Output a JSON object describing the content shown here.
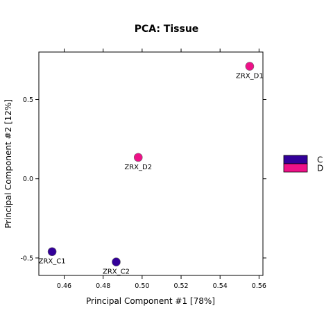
{
  "chart_data": {
    "type": "scatter",
    "title": "PCA: Tissue",
    "xlabel": "Principal Component #1 [78%]",
    "ylabel": "Principal Component #2 [12%]",
    "xlim": [
      0.447,
      0.562
    ],
    "ylim": [
      -0.61,
      0.8
    ],
    "x_ticks": [
      0.46,
      0.48,
      0.5,
      0.52,
      0.54,
      0.56
    ],
    "x_tick_labels": [
      "0.46",
      "0.48",
      "0.50",
      "0.52",
      "0.54",
      "0.56"
    ],
    "y_ticks": [
      -0.5,
      0.0,
      0.5
    ],
    "y_tick_labels": [
      "-0.5",
      "0.0",
      "0.5"
    ],
    "grid": false,
    "legend_position": "right",
    "series": [
      {
        "name": "C",
        "color": "#330099",
        "points": [
          {
            "label": "ZRX_C1",
            "x": 0.4538,
            "y": -0.46
          },
          {
            "label": "ZRX_C2",
            "x": 0.4867,
            "y": -0.525
          }
        ]
      },
      {
        "name": "D",
        "color": "#EE1188",
        "points": [
          {
            "label": "ZRX_D2",
            "x": 0.498,
            "y": 0.135
          },
          {
            "label": "ZRX_D1",
            "x": 0.5552,
            "y": 0.71
          }
        ]
      }
    ]
  }
}
